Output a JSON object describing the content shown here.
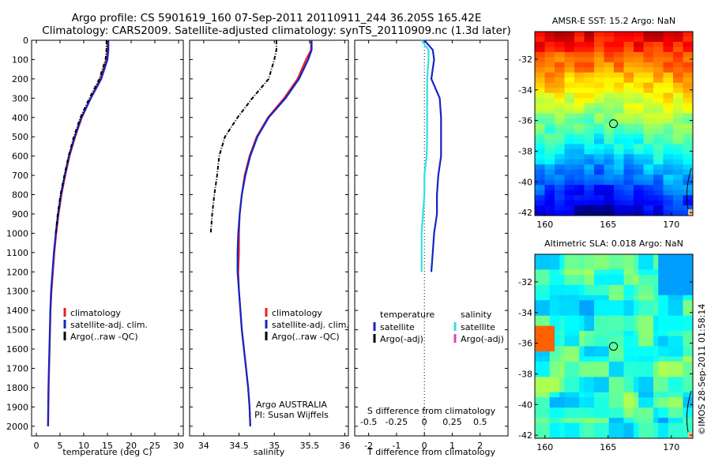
{
  "header": {
    "line1": "Argo profile: CS 5901619_160 07-Sep-2011 20110911_244 36.205S 165.42E",
    "line2": "Climatology: CARS2009. Satellite-adjusted climatology: synTS_20110909.nc (1.3d later)"
  },
  "colors": {
    "climatology": "#e8201c",
    "satellite": "#1424c8",
    "argo": "#000000",
    "salinity_satellite": "#30e0e8",
    "salinity_argo_adj": "#e040c0"
  },
  "chart_data": [
    {
      "type": "line",
      "id": "temperature",
      "xlabel": "temperature (deg C)",
      "xlim": [
        -1,
        31
      ],
      "xticks": [
        0,
        5,
        10,
        15,
        20,
        25,
        30
      ],
      "ylim": [
        0,
        2050
      ],
      "yticks": [
        0,
        100,
        200,
        300,
        400,
        500,
        600,
        700,
        800,
        900,
        1000,
        1100,
        1200,
        1300,
        1400,
        1500,
        1600,
        1700,
        1800,
        1900,
        2000
      ],
      "y_reversed": true,
      "legend": [
        "climatology",
        "satellite-adj. clim.",
        "Argo(..raw -QC)"
      ],
      "series": [
        {
          "name": "climatology",
          "color": "#e8201c",
          "x": [
            15.0,
            15.0,
            14.8,
            13.5,
            11.5,
            9.6,
            8.2,
            7.0,
            6.1,
            5.3,
            4.7,
            4.2,
            3.8,
            3.5,
            3.2,
            3.0,
            2.9,
            2.8,
            2.7,
            2.6,
            2.55,
            2.5
          ],
          "y": [
            0,
            50,
            100,
            200,
            300,
            400,
            500,
            600,
            700,
            800,
            900,
            1000,
            1100,
            1200,
            1300,
            1400,
            1500,
            1600,
            1700,
            1800,
            1900,
            2000
          ]
        },
        {
          "name": "satellite-adj. clim.",
          "color": "#1424c8",
          "x": [
            15.2,
            15.2,
            15.0,
            13.7,
            11.5,
            9.5,
            8.1,
            6.9,
            6.0,
            5.2,
            4.6,
            4.1,
            3.7,
            3.4,
            3.1,
            2.95,
            2.85,
            2.75,
            2.65,
            2.55,
            2.5,
            2.45
          ],
          "y": [
            0,
            50,
            100,
            200,
            300,
            400,
            500,
            600,
            700,
            800,
            900,
            1000,
            1100,
            1200,
            1300,
            1400,
            1500,
            1600,
            1700,
            1800,
            1900,
            2000
          ]
        },
        {
          "name": "Argo(..raw -QC)",
          "color": "#000000",
          "dashed": true,
          "x": [
            14.8,
            14.8,
            14.6,
            13.3,
            11.2,
            9.3,
            7.9,
            6.8,
            5.9,
            5.1,
            4.5,
            4.1
          ],
          "y": [
            0,
            50,
            100,
            200,
            300,
            400,
            500,
            600,
            700,
            800,
            900,
            1000
          ]
        }
      ]
    },
    {
      "type": "line",
      "id": "salinity",
      "xlabel": "salinity",
      "xlim": [
        33.8,
        36.05
      ],
      "xticks": [
        34,
        34.5,
        35,
        35.5,
        36
      ],
      "ylim": [
        0,
        2050
      ],
      "y_reversed": true,
      "legend": [
        "climatology",
        "satellite-adj. clim.",
        "Argo(..raw -QC)"
      ],
      "annotation": [
        "Argo AUSTRALIA",
        "PI: Susan Wijffels"
      ],
      "series": [
        {
          "name": "climatology",
          "color": "#e8201c",
          "x": [
            35.52,
            35.52,
            35.45,
            35.33,
            35.14,
            34.91,
            34.75,
            34.65,
            34.58,
            34.54,
            34.51,
            34.5,
            34.5,
            34.49,
            34.5,
            34.52,
            34.54,
            34.57,
            34.6,
            34.63,
            34.65,
            34.66
          ],
          "y": [
            0,
            50,
            100,
            200,
            300,
            400,
            500,
            600,
            700,
            800,
            900,
            1000,
            1100,
            1200,
            1300,
            1400,
            1500,
            1600,
            1700,
            1800,
            1900,
            2000
          ]
        },
        {
          "name": "satellite-adj. clim.",
          "color": "#1424c8",
          "x": [
            35.53,
            35.53,
            35.48,
            35.35,
            35.16,
            34.92,
            34.76,
            34.66,
            34.59,
            34.54,
            34.51,
            34.49,
            34.48,
            34.48,
            34.5,
            34.52,
            34.54,
            34.57,
            34.6,
            34.63,
            34.65,
            34.66
          ],
          "y": [
            0,
            50,
            100,
            200,
            300,
            400,
            500,
            600,
            700,
            800,
            900,
            1000,
            1100,
            1200,
            1300,
            1400,
            1500,
            1600,
            1700,
            1800,
            1900,
            2000
          ]
        },
        {
          "name": "Argo(..raw -QC)",
          "color": "#000000",
          "dashed": true,
          "x": [
            35.03,
            35.03,
            35.0,
            34.92,
            34.69,
            34.48,
            34.3,
            34.22,
            34.19,
            34.15,
            34.12,
            34.1
          ],
          "y": [
            0,
            50,
            100,
            200,
            300,
            400,
            500,
            600,
            700,
            800,
            900,
            1000
          ]
        }
      ]
    },
    {
      "type": "line",
      "id": "difference",
      "xlabel": "T difference from climatology",
      "xlabel_top": "S difference from climatology",
      "xlim": [
        -2.5,
        3
      ],
      "xticks": [
        -2,
        -1,
        0,
        1,
        2
      ],
      "xticks_top": [
        -0.5,
        -0.25,
        0,
        0.25,
        0.5
      ],
      "ylim": [
        0,
        2050
      ],
      "y_reversed": true,
      "legend_left_title": "temperature",
      "legend_left": [
        "satellite",
        "Argo(-adj)"
      ],
      "legend_right_title": "salinity",
      "legend_right": [
        "satellite",
        "Argo(-adj)"
      ],
      "series": [
        {
          "name": "T satellite",
          "color": "#1424c8",
          "x": [
            0.0,
            0.3,
            0.35,
            0.25,
            0.55,
            0.6,
            0.6,
            0.6,
            0.5,
            0.45,
            0.45,
            0.35,
            0.3,
            0.25
          ],
          "y": [
            0,
            50,
            100,
            200,
            300,
            400,
            500,
            600,
            700,
            800,
            900,
            1000,
            1100,
            1200
          ]
        },
        {
          "name": "S satellite",
          "color": "#30e0e8",
          "x": [
            -0.1,
            0.15,
            0.15,
            0.1,
            0.1,
            0.1,
            0.1,
            0.08,
            0.0,
            0.0,
            -0.05,
            -0.1,
            -0.1,
            -0.1
          ],
          "y": [
            0,
            50,
            100,
            200,
            300,
            400,
            500,
            600,
            700,
            800,
            900,
            1000,
            1100,
            1200
          ]
        }
      ]
    },
    {
      "type": "heatmap",
      "id": "sst",
      "title": "AMSR-E SST: 15.2 Argo: NaN",
      "xticks": [
        160,
        165,
        170
      ],
      "yticks": [
        -32,
        -34,
        -36,
        -38,
        -40,
        -42
      ],
      "xlim": [
        159.2,
        171.7
      ],
      "ylim": [
        -42.2,
        -30.2
      ],
      "marker": {
        "lon": 165.42,
        "lat": -36.205
      }
    },
    {
      "type": "heatmap",
      "id": "sla",
      "title": "Altimetric SLA: 0.018 Argo: NaN",
      "xticks": [
        160,
        165,
        170
      ],
      "yticks": [
        -32,
        -34,
        -36,
        -38,
        -40,
        -42
      ],
      "xlim": [
        159.2,
        171.7
      ],
      "ylim": [
        -42.2,
        -30.2
      ],
      "marker": {
        "lon": 165.42,
        "lat": -36.205
      }
    }
  ],
  "credit": "©IMOS 28-Sep-2011 01:58:14"
}
